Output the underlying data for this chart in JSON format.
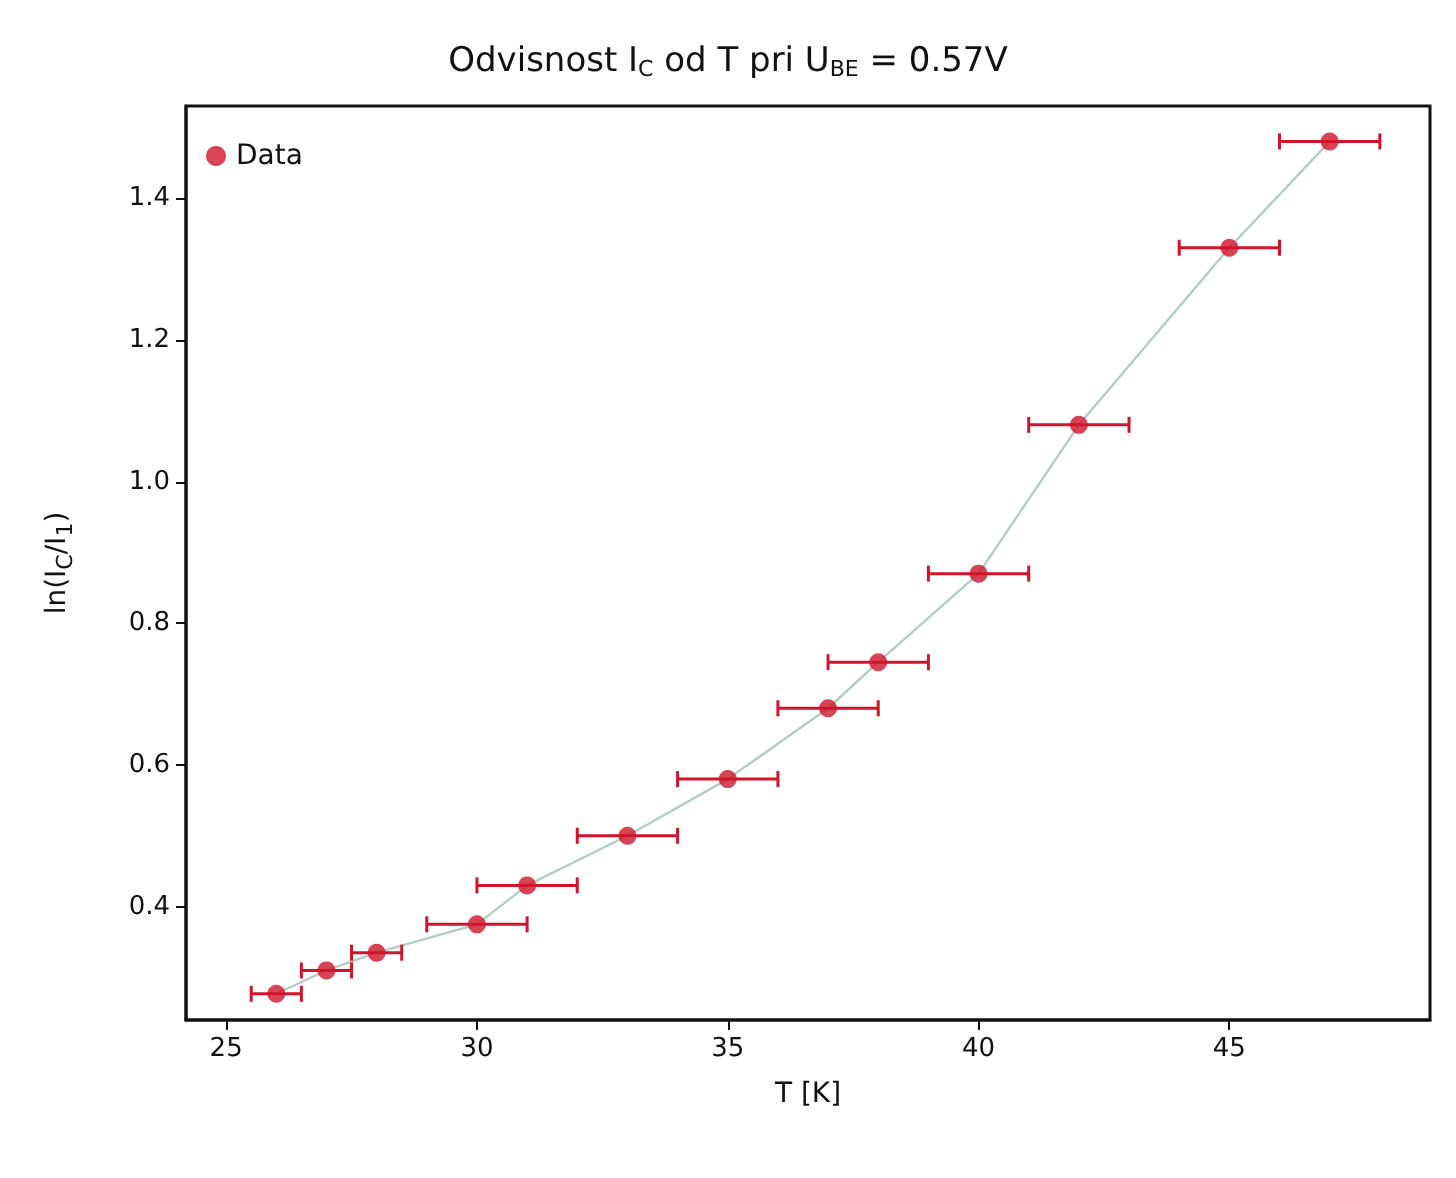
{
  "chart_data": {
    "type": "scatter",
    "title": "Odvisnost I$_{C}$ od T pri U$_{BE}$ = 0.57V",
    "xlabel": "T [K]",
    "ylabel": "ln(I$_{C}$/I$_{1}$)",
    "x": [
      26,
      27,
      28,
      30,
      31,
      33,
      35,
      37,
      38,
      40,
      42,
      45,
      47
    ],
    "series": [
      {
        "name": "Data",
        "color": "#d0142c",
        "values": [
          0.277,
          0.31,
          0.335,
          0.375,
          0.43,
          0.5,
          0.58,
          0.68,
          0.745,
          0.87,
          1.08,
          1.33,
          1.48
        ],
        "xerrors": [
          0.5,
          0.5,
          0.5,
          1,
          1,
          1,
          1,
          1,
          1,
          1,
          1,
          1,
          1
        ]
      },
      {
        "type": "line",
        "color": "#b4ccc4",
        "marker": "none",
        "values": [
          0.277,
          0.31,
          0.335,
          0.375,
          0.43,
          0.5,
          0.58,
          0.68,
          0.745,
          0.87,
          1.08,
          1.33,
          1.48
        ]
      }
    ],
    "xlim": [
      24.2,
      49
    ],
    "xticks": [
      25,
      30,
      35,
      40,
      45
    ],
    "ylim": [
      0.24,
      1.53
    ],
    "yticks": [
      0.4,
      0.6,
      0.8,
      {
        "value": 1,
        "label": "1.0"
      },
      1.2,
      1.4
    ],
    "grid": false,
    "legend": "top left",
    "marker": "circle"
  }
}
